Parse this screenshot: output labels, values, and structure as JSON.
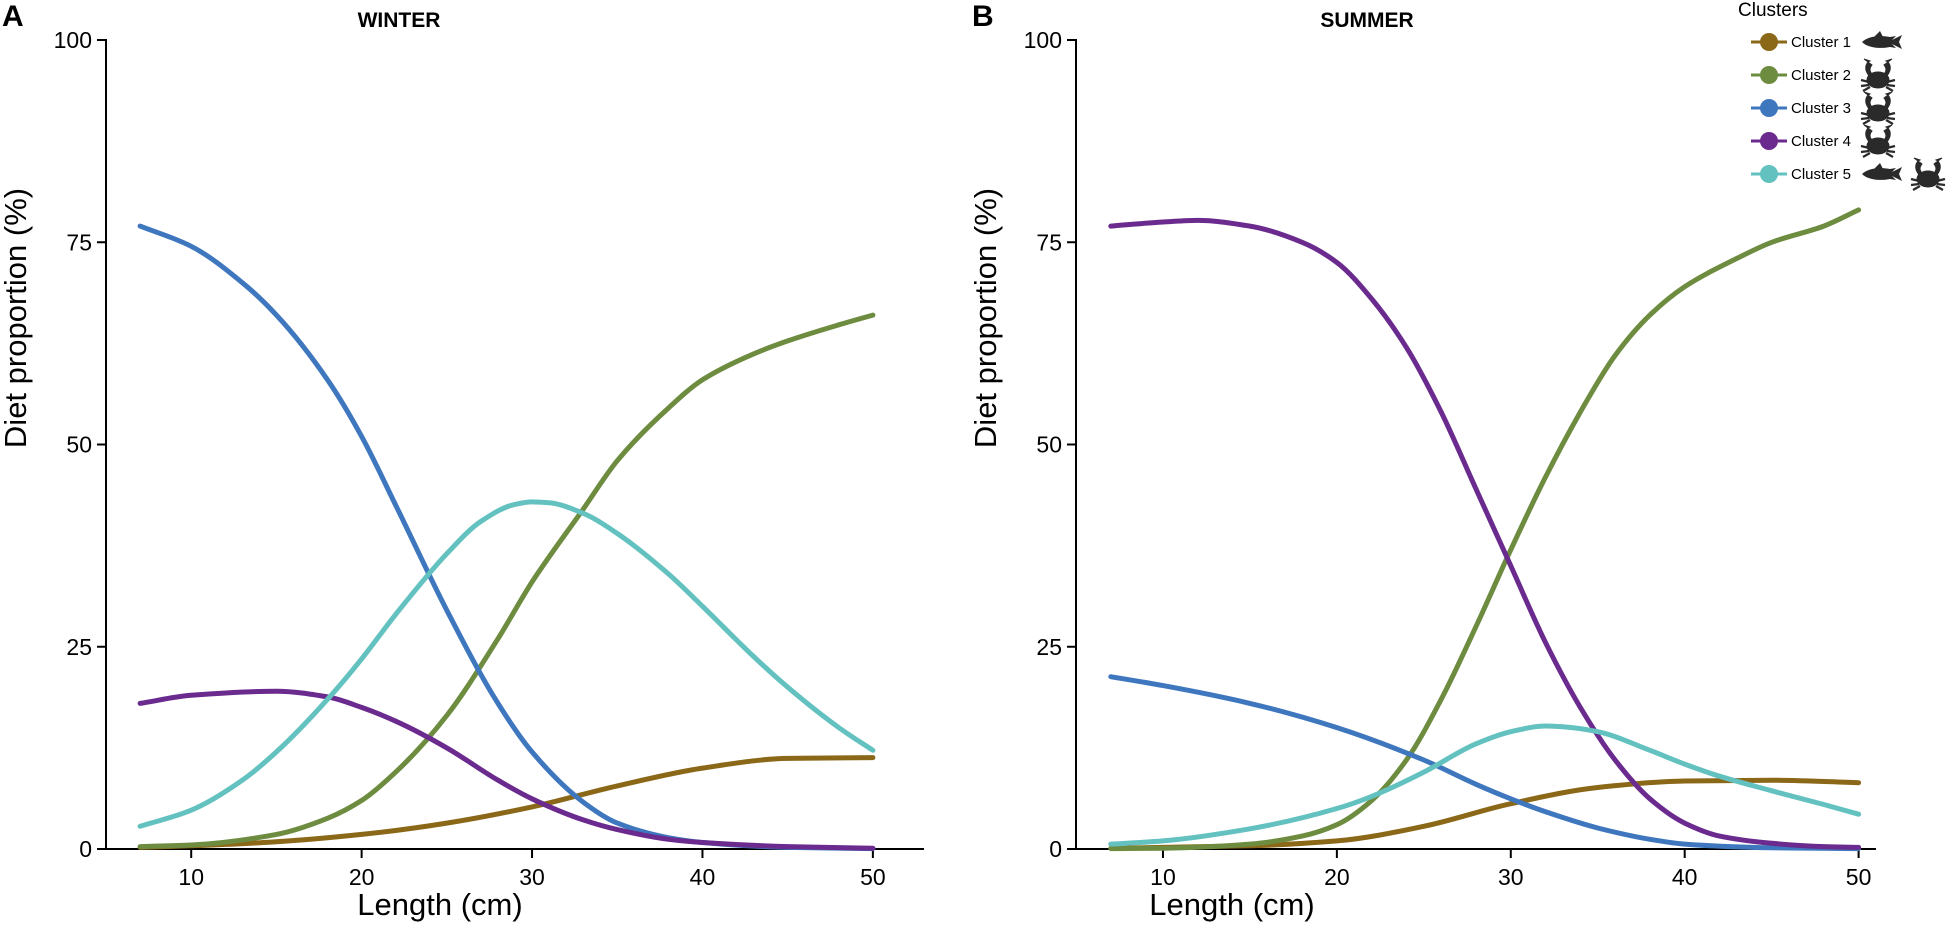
{
  "chart_data": [
    {
      "type": "line",
      "panel_label": "A",
      "title": "WINTER",
      "xlabel": "Length (cm)",
      "ylabel": "Diet proportion (%)",
      "xlim": [
        5,
        53
      ],
      "ylim": [
        0,
        100
      ],
      "xticks": [
        10,
        20,
        30,
        40,
        50
      ],
      "yticks": [
        0,
        25,
        50,
        75,
        100
      ],
      "series": [
        {
          "name": "Cluster 1",
          "key": "c1",
          "x": [
            7,
            10,
            15,
            20,
            25,
            30,
            35,
            40,
            45,
            50
          ],
          "values": [
            0.2,
            0.4,
            0.9,
            1.8,
            3.2,
            5.2,
            7.8,
            10.0,
            11.2,
            11.3
          ]
        },
        {
          "name": "Cluster 2",
          "key": "c2",
          "x": [
            7,
            10,
            15,
            18,
            20,
            22,
            25,
            28,
            30,
            33,
            35,
            38,
            40,
            43,
            45,
            48,
            50
          ],
          "values": [
            0.3,
            0.5,
            1.8,
            3.8,
            6.0,
            9.5,
            16.5,
            26.0,
            33.0,
            42.0,
            48.0,
            54.5,
            58.0,
            61.2,
            62.8,
            64.8,
            66.0
          ]
        },
        {
          "name": "Cluster 3",
          "key": "c3",
          "x": [
            7,
            10,
            13,
            15,
            18,
            20,
            22,
            25,
            28,
            30,
            33,
            35,
            38,
            40,
            45,
            50
          ],
          "values": [
            77.0,
            74.5,
            70.0,
            66.0,
            58.0,
            51.0,
            42.5,
            29.5,
            18.0,
            12.0,
            5.8,
            3.2,
            1.4,
            0.8,
            0.2,
            0.05
          ]
        },
        {
          "name": "Cluster 4",
          "key": "c4",
          "x": [
            7,
            10,
            15,
            18,
            20,
            22,
            25,
            28,
            30,
            33,
            35,
            38,
            40,
            45,
            50
          ],
          "values": [
            18.0,
            19.0,
            19.5,
            18.8,
            17.5,
            15.8,
            12.5,
            8.5,
            6.2,
            3.6,
            2.4,
            1.2,
            0.8,
            0.3,
            0.1
          ]
        },
        {
          "name": "Cluster 5",
          "key": "c5",
          "x": [
            7,
            10,
            13,
            15,
            18,
            20,
            22,
            25,
            27,
            29,
            30,
            31,
            33,
            35,
            38,
            40,
            43,
            45,
            48,
            50
          ],
          "values": [
            2.8,
            4.8,
            8.5,
            12.0,
            18.5,
            23.5,
            29.0,
            36.5,
            40.5,
            42.6,
            42.9,
            42.8,
            41.5,
            39.0,
            34.0,
            30.0,
            23.8,
            20.0,
            15.0,
            12.2
          ]
        }
      ]
    },
    {
      "type": "line",
      "panel_label": "B",
      "title": "SUMMER",
      "xlabel": "Length (cm)",
      "ylabel": "Diet proportion (%)",
      "xlim": [
        5,
        51
      ],
      "ylim": [
        0,
        100
      ],
      "xticks": [
        10,
        20,
        30,
        40,
        50
      ],
      "yticks": [
        0,
        25,
        50,
        75,
        100
      ],
      "series": [
        {
          "name": "Cluster 1",
          "key": "c1",
          "x": [
            7,
            10,
            15,
            20,
            25,
            30,
            35,
            40,
            45,
            50
          ],
          "values": [
            0.1,
            0.2,
            0.4,
            1.0,
            2.8,
            5.6,
            7.6,
            8.4,
            8.5,
            8.2
          ]
        },
        {
          "name": "Cluster 2",
          "key": "c2",
          "x": [
            7,
            10,
            15,
            18,
            20,
            22,
            24,
            26,
            28,
            30,
            32,
            34,
            36,
            38,
            40,
            43,
            45,
            48,
            50
          ],
          "values": [
            0.05,
            0.1,
            0.6,
            1.6,
            3.0,
            6.0,
            11.0,
            18.5,
            27.5,
            37.0,
            46.0,
            54.0,
            61.0,
            66.0,
            69.5,
            73.0,
            75.0,
            77.0,
            79.0
          ]
        },
        {
          "name": "Cluster 3",
          "key": "c3",
          "x": [
            7,
            10,
            15,
            20,
            25,
            28,
            30,
            32,
            35,
            38,
            40,
            45,
            50
          ],
          "values": [
            21.3,
            20.2,
            18.0,
            15.0,
            11.0,
            8.0,
            6.2,
            4.6,
            2.6,
            1.2,
            0.6,
            0.15,
            0.05
          ]
        },
        {
          "name": "Cluster 4",
          "key": "c4",
          "x": [
            7,
            10,
            12,
            15,
            18,
            20,
            22,
            24,
            26,
            28,
            30,
            32,
            34,
            36,
            38,
            40,
            42,
            45,
            48,
            50
          ],
          "values": [
            77.0,
            77.5,
            77.7,
            77.0,
            75.0,
            72.5,
            68.0,
            62.0,
            54.0,
            44.5,
            35.0,
            25.5,
            17.5,
            11.0,
            6.2,
            3.2,
            1.6,
            0.7,
            0.3,
            0.2
          ]
        },
        {
          "name": "Cluster 5",
          "key": "c5",
          "x": [
            7,
            10,
            15,
            20,
            22,
            25,
            28,
            30,
            32,
            33,
            35,
            38,
            40,
            42,
            45,
            48,
            50
          ],
          "values": [
            0.6,
            1.0,
            2.5,
            5.0,
            6.5,
            9.5,
            13.0,
            14.5,
            15.2,
            15.1,
            14.5,
            12.2,
            10.5,
            9.0,
            7.2,
            5.5,
            4.3
          ]
        }
      ]
    }
  ],
  "legend": {
    "title": "Clusters",
    "entries": [
      {
        "key": "c1",
        "label": "Cluster 1",
        "icons": [
          "fish-icon"
        ]
      },
      {
        "key": "c2",
        "label": "Cluster 2",
        "icons": [
          "crab-icon"
        ]
      },
      {
        "key": "c3",
        "label": "Cluster 3",
        "icons": [
          "crab-icon"
        ]
      },
      {
        "key": "c4",
        "label": "Cluster 4",
        "icons": [
          "crab-icon"
        ]
      },
      {
        "key": "c5",
        "label": "Cluster 5",
        "icons": [
          "fish-icon",
          "crab-icon"
        ]
      }
    ]
  },
  "colors": {
    "c1": "#8B6718",
    "c2": "#6D8C3F",
    "c3": "#3F77BF",
    "c4": "#6A2A8E",
    "c5": "#63C2C0",
    "icon": "#2a2a2a"
  }
}
